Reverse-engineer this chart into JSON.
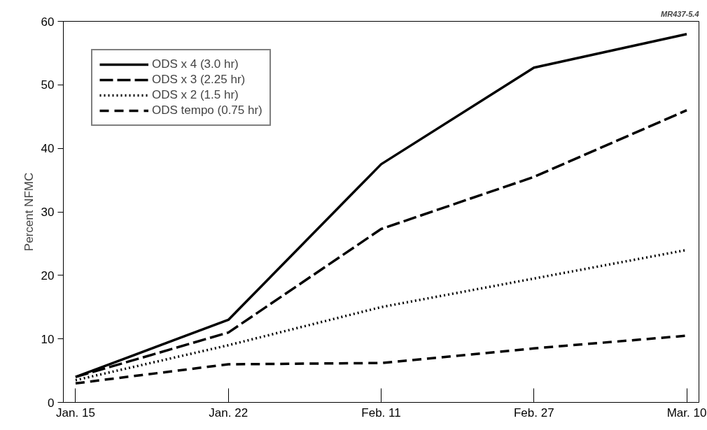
{
  "chart_data": {
    "type": "line",
    "ylabel": "Percent NFMC",
    "categories": [
      "Jan. 15",
      "Jan. 22",
      "Feb. 11",
      "Feb. 27",
      "Mar. 10"
    ],
    "series": [
      {
        "name": "ODS x 4 (3.0 hr)",
        "color": "#000000",
        "line_style": "solid",
        "values": [
          4,
          13,
          37.5,
          52.7,
          58
        ]
      },
      {
        "name": "ODS x 3 (2.25 hr)",
        "color": "#000000",
        "line_style": "longdash",
        "values": [
          4,
          11,
          27.3,
          35.5,
          46
        ]
      },
      {
        "name": "ODS x 2 (1.5 hr)",
        "color": "#000000",
        "line_style": "dotted",
        "values": [
          3.5,
          9,
          15,
          19.5,
          24
        ]
      },
      {
        "name": "ODS tempo (0.75 hr)",
        "color": "#000000",
        "line_style": "dashed",
        "values": [
          3,
          6,
          6.2,
          8.5,
          10.5
        ]
      }
    ],
    "ylim": [
      0,
      60
    ],
    "yticks": [
      0,
      10,
      20,
      30,
      40,
      50,
      60
    ],
    "grid": false,
    "legend": "top left",
    "marker": "none",
    "annotations": [
      "MR437-5.4"
    ]
  }
}
